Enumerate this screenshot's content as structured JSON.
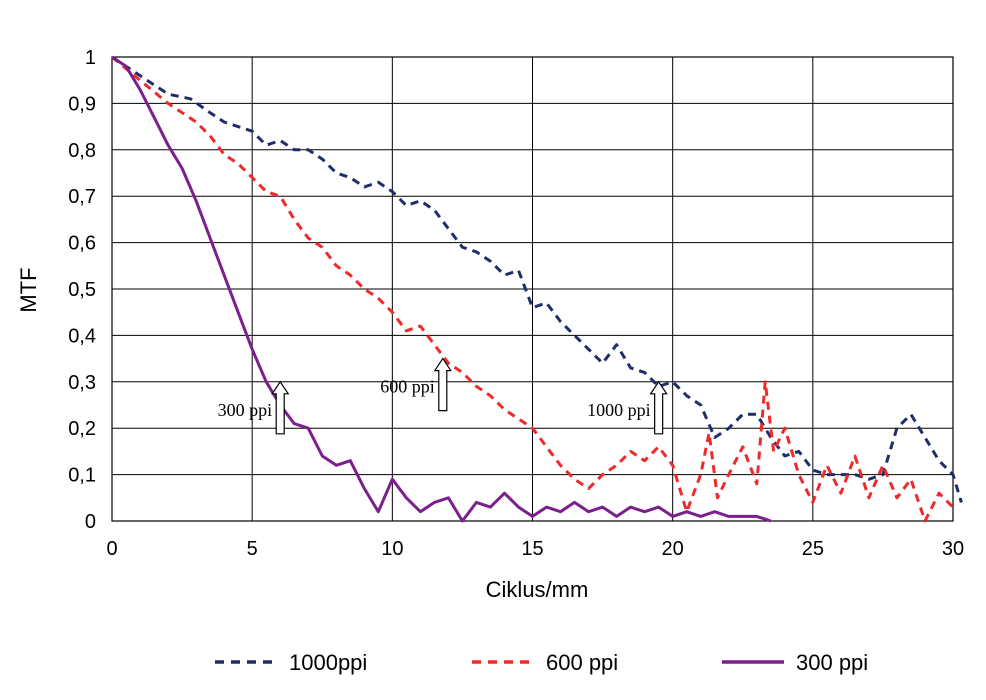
{
  "chart_data": {
    "type": "line",
    "title": "",
    "xlabel": "Ciklus/mm",
    "ylabel": "MTF",
    "xlim": [
      0,
      30
    ],
    "ylim": [
      0,
      1
    ],
    "x_ticks": [
      "0",
      "5",
      "10",
      "15",
      "20",
      "25",
      "30"
    ],
    "y_ticks": [
      "0",
      "0,1",
      "0,2",
      "0,3",
      "0,4",
      "0,5",
      "0,6",
      "0,7",
      "0,8",
      "0,9",
      "1"
    ],
    "grid": true,
    "legend_position": "bottom",
    "series": [
      {
        "name": "1000ppi",
        "color": "#1f2d6b",
        "style": "dashed",
        "x": [
          0,
          1,
          2,
          2.8,
          3.5,
          4,
          5,
          5.5,
          6,
          6.5,
          7,
          7.5,
          8,
          8.5,
          9,
          9.5,
          10,
          10.5,
          11,
          11.5,
          12,
          12.5,
          13,
          13.5,
          14,
          14.5,
          15,
          15.5,
          16,
          16.5,
          17,
          17.5,
          18,
          18.5,
          19,
          19.5,
          20,
          20.5,
          21,
          21.5,
          22,
          22.5,
          23,
          23.5,
          24,
          24.5,
          25,
          25.5,
          26,
          26.5,
          27,
          27.5,
          28,
          28.5,
          29,
          29.5,
          30,
          30.3
        ],
        "values": [
          1.0,
          0.96,
          0.92,
          0.91,
          0.88,
          0.86,
          0.84,
          0.81,
          0.82,
          0.8,
          0.8,
          0.78,
          0.75,
          0.74,
          0.72,
          0.73,
          0.71,
          0.68,
          0.69,
          0.67,
          0.63,
          0.59,
          0.58,
          0.56,
          0.53,
          0.54,
          0.46,
          0.47,
          0.43,
          0.4,
          0.37,
          0.34,
          0.38,
          0.33,
          0.32,
          0.29,
          0.3,
          0.27,
          0.25,
          0.18,
          0.2,
          0.23,
          0.23,
          0.18,
          0.14,
          0.15,
          0.11,
          0.1,
          0.1,
          0.1,
          0.09,
          0.1,
          0.2,
          0.23,
          0.18,
          0.13,
          0.1,
          0.04
        ]
      },
      {
        "name": "600 ppi",
        "color": "#ee2a2a",
        "style": "dashed",
        "x": [
          0,
          1,
          2,
          3,
          3.5,
          4,
          4.5,
          5,
          5.5,
          6,
          6.5,
          7,
          7.5,
          8,
          8.5,
          9,
          9.5,
          10,
          10.5,
          11,
          11.5,
          12,
          12.5,
          13,
          13.5,
          14,
          14.5,
          15,
          15.5,
          16,
          16.5,
          17,
          17.5,
          18,
          18.5,
          19,
          19.5,
          20,
          20.5,
          21,
          21.3,
          21.6,
          22,
          22.5,
          23,
          23.3,
          23.6,
          24,
          24.5,
          25,
          25.5,
          26,
          26.5,
          27,
          27.5,
          28,
          28.5,
          29,
          29.5,
          30
        ],
        "values": [
          1.0,
          0.95,
          0.9,
          0.86,
          0.83,
          0.79,
          0.77,
          0.74,
          0.71,
          0.7,
          0.65,
          0.61,
          0.59,
          0.55,
          0.53,
          0.5,
          0.48,
          0.45,
          0.41,
          0.42,
          0.38,
          0.34,
          0.32,
          0.29,
          0.27,
          0.24,
          0.22,
          0.2,
          0.16,
          0.12,
          0.09,
          0.07,
          0.1,
          0.12,
          0.15,
          0.13,
          0.16,
          0.12,
          0.02,
          0.1,
          0.19,
          0.05,
          0.1,
          0.16,
          0.08,
          0.3,
          0.15,
          0.2,
          0.1,
          0.04,
          0.12,
          0.06,
          0.14,
          0.05,
          0.12,
          0.05,
          0.09,
          0.0,
          0.06,
          0.03
        ]
      },
      {
        "name": "300 ppi",
        "color": "#7b1f8c",
        "style": "solid",
        "x": [
          0,
          0.5,
          1,
          1.5,
          2,
          2.5,
          3,
          3.5,
          4,
          4.5,
          5,
          5.5,
          6,
          6.5,
          7,
          7.5,
          8,
          8.5,
          9,
          9.5,
          10,
          10.5,
          11,
          11.5,
          12,
          12.5,
          13,
          13.5,
          14,
          14.5,
          15,
          15.5,
          16,
          16.5,
          17,
          17.5,
          18,
          18.5,
          19,
          19.5,
          20,
          20.5,
          21,
          21.5,
          22,
          22.5,
          23,
          23.5
        ],
        "values": [
          1.0,
          0.98,
          0.93,
          0.87,
          0.81,
          0.76,
          0.69,
          0.61,
          0.53,
          0.45,
          0.37,
          0.3,
          0.25,
          0.21,
          0.2,
          0.14,
          0.12,
          0.13,
          0.07,
          0.02,
          0.09,
          0.05,
          0.02,
          0.04,
          0.05,
          0.0,
          0.04,
          0.03,
          0.06,
          0.03,
          0.01,
          0.03,
          0.02,
          0.04,
          0.02,
          0.03,
          0.01,
          0.03,
          0.02,
          0.03,
          0.01,
          0.02,
          0.01,
          0.02,
          0.01,
          0.01,
          0.01,
          0.0
        ]
      }
    ],
    "annotations": [
      {
        "text": "300 ppi",
        "x": 6,
        "y": 0.3
      },
      {
        "text": "600 ppi",
        "x": 11.8,
        "y": 0.35
      },
      {
        "text": "1000 ppi",
        "x": 19.5,
        "y": 0.3
      }
    ]
  }
}
